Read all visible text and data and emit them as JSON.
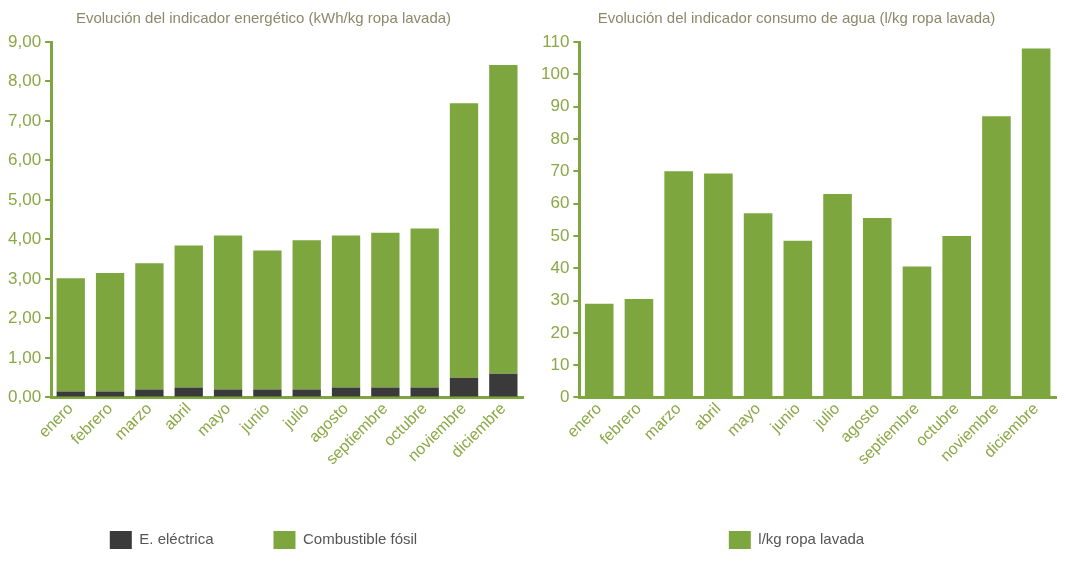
{
  "chart_data": [
    {
      "type": "bar",
      "title": "Evolución del indicador energético (kWh/kg ropa lavada)",
      "categories": [
        "enero",
        "febrero",
        "marzo",
        "abril",
        "mayo",
        "junio",
        "julio",
        "agosto",
        "septiembre",
        "octubre",
        "noviembre",
        "diciembre"
      ],
      "series": [
        {
          "name": "E. eléctrica",
          "color": "#3a3a3a",
          "values": [
            0.15,
            0.15,
            0.2,
            0.25,
            0.2,
            0.2,
            0.2,
            0.25,
            0.25,
            0.25,
            0.5,
            0.6
          ]
        },
        {
          "name": "Combustible fósil",
          "color": "#7ea63f",
          "values": [
            2.87,
            3.0,
            3.2,
            3.6,
            3.9,
            3.52,
            3.78,
            3.85,
            3.92,
            4.03,
            6.95,
            7.82
          ]
        }
      ],
      "ylim": [
        0,
        9
      ],
      "yticks": [
        {
          "value": 0,
          "label": "0,00"
        },
        {
          "value": 1,
          "label": "1,00"
        },
        {
          "value": 2,
          "label": "2,00"
        },
        {
          "value": 3,
          "label": "3,00"
        },
        {
          "value": 4,
          "label": "4,00"
        },
        {
          "value": 5,
          "label": "5,00"
        },
        {
          "value": 6,
          "label": "6,00"
        },
        {
          "value": 7,
          "label": "7,00"
        },
        {
          "value": 8,
          "label": "8,00"
        },
        {
          "value": 9,
          "label": "9,00"
        }
      ],
      "stacked": true,
      "grid": false,
      "legend": "bottom"
    },
    {
      "type": "bar",
      "title": "Evolución del indicador consumo de agua (l/kg ropa lavada)",
      "categories": [
        "enero",
        "febrero",
        "marzo",
        "abril",
        "mayo",
        "junio",
        "julio",
        "agosto",
        "septiembre",
        "octubre",
        "noviembre",
        "diciembre"
      ],
      "series": [
        {
          "name": "l/kg ropa lavada",
          "color": "#7ea63f",
          "values": [
            29,
            30.5,
            70,
            69.3,
            57,
            48.5,
            63,
            55.5,
            40.5,
            50,
            87,
            108
          ]
        }
      ],
      "ylim": [
        0,
        110
      ],
      "yticks": [
        0,
        10,
        20,
        30,
        40,
        50,
        60,
        70,
        80,
        90,
        100,
        110
      ],
      "grid": false,
      "legend": "bottom"
    }
  ]
}
